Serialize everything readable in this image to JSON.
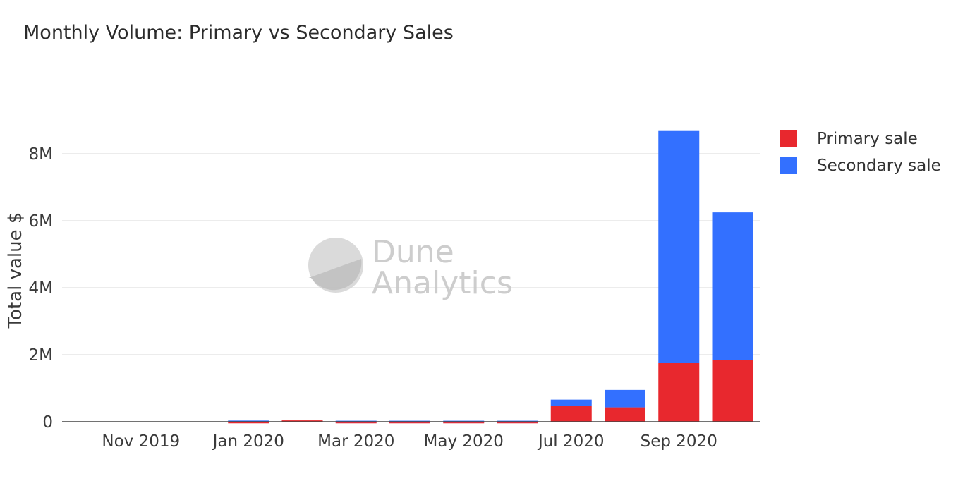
{
  "chart_data": {
    "type": "bar",
    "stacked": true,
    "title": "Monthly Volume: Primary vs Secondary Sales",
    "xlabel": "",
    "ylabel": "Total value $",
    "ylim": [
      0,
      9000000
    ],
    "yticks": [
      {
        "value": 0,
        "label": "0"
      },
      {
        "value": 2000000,
        "label": "2M"
      },
      {
        "value": 4000000,
        "label": "4M"
      },
      {
        "value": 6000000,
        "label": "6M"
      },
      {
        "value": 8000000,
        "label": "8M"
      }
    ],
    "grid": true,
    "legend_position": "top-right",
    "categories": [
      "2019-10",
      "2019-11",
      "2019-12",
      "2020-01",
      "2020-02",
      "2020-03",
      "2020-04",
      "2020-05",
      "2020-06",
      "2020-07",
      "2020-08",
      "2020-09",
      "2020-10"
    ],
    "xtick_labels": [
      {
        "category": "2019-11",
        "label": "Nov 2019"
      },
      {
        "category": "2020-01",
        "label": "Jan 2020"
      },
      {
        "category": "2020-03",
        "label": "Mar 2020"
      },
      {
        "category": "2020-05",
        "label": "May 2020"
      },
      {
        "category": "2020-07",
        "label": "Jul 2020"
      },
      {
        "category": "2020-09",
        "label": "Sep 2020"
      }
    ],
    "series": [
      {
        "name": "Primary sale",
        "color": "#e8282e",
        "values": [
          0,
          0,
          0,
          5000,
          40000,
          5000,
          5000,
          5000,
          5000,
          470000,
          430000,
          1760000,
          1850000
        ]
      },
      {
        "name": "Secondary sale",
        "color": "#3370ff",
        "values": [
          0,
          0,
          0,
          30000,
          0,
          25000,
          25000,
          25000,
          25000,
          190000,
          520000,
          6920000,
          4400000
        ]
      }
    ]
  },
  "watermark": {
    "line1": "Dune",
    "line2": "Analytics"
  }
}
